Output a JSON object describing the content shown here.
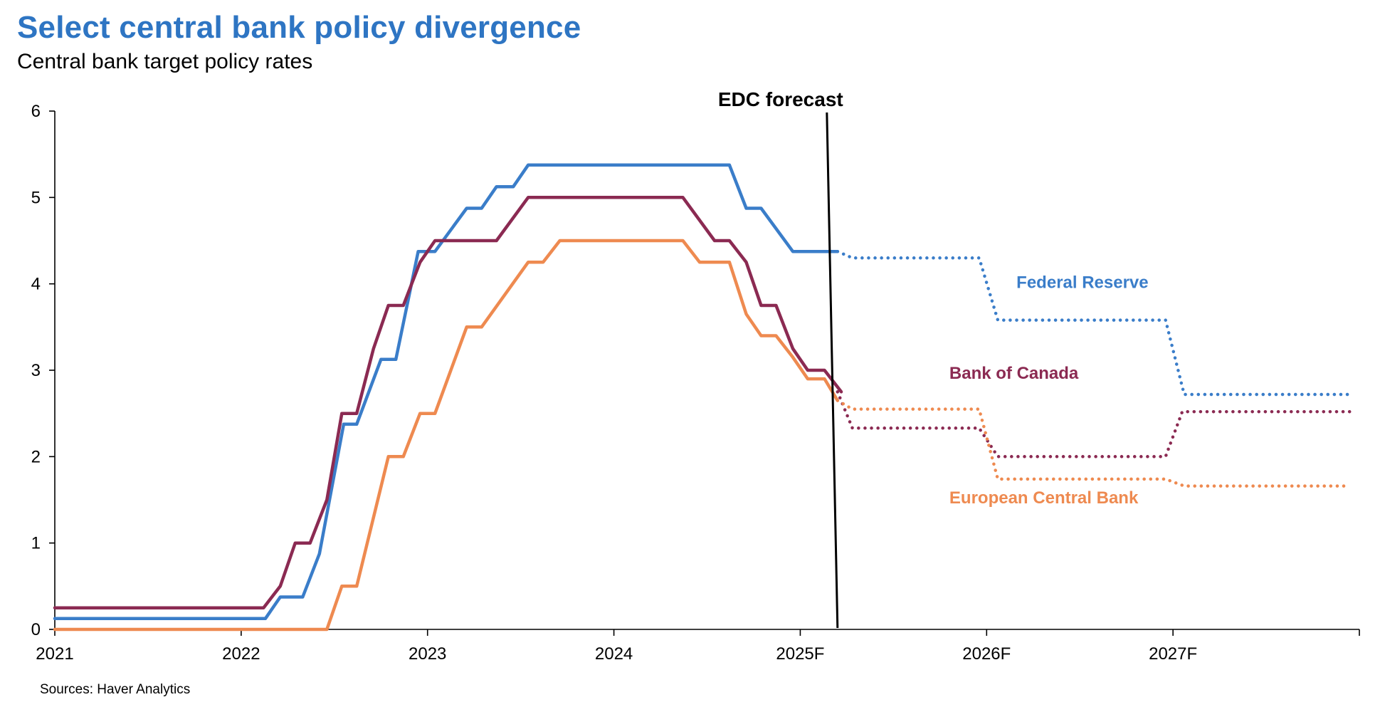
{
  "chart_data": {
    "type": "line",
    "title": "Select central bank policy divergence",
    "subtitle": "Central bank target policy rates",
    "source": "Sources: Haver Analytics",
    "forecast_label": "EDC forecast",
    "forecast_start": 2025.2,
    "xlim": [
      2021,
      2028.0
    ],
    "ylim": [
      0,
      6
    ],
    "y_ticks": [
      0,
      1,
      2,
      3,
      4,
      5,
      6
    ],
    "x_ticks": [
      {
        "value": 2021,
        "label": "2021"
      },
      {
        "value": 2022,
        "label": "2022"
      },
      {
        "value": 2023,
        "label": "2023"
      },
      {
        "value": 2024,
        "label": "2024"
      },
      {
        "value": 2025,
        "label": "2025F"
      },
      {
        "value": 2026,
        "label": "2026F"
      },
      {
        "value": 2027,
        "label": "2027F"
      }
    ],
    "colors": {
      "title": "#2E75C3",
      "fed": "#3A7DC9",
      "boc": "#8B2A52",
      "ecb": "#EE8A50"
    },
    "series": [
      {
        "name": "Federal Reserve",
        "color": "#3A7DC9",
        "label_at": [
          2026.16,
          3.95
        ],
        "actual": [
          [
            2021.0,
            0.125
          ],
          [
            2022.13,
            0.125
          ],
          [
            2022.21,
            0.375
          ],
          [
            2022.33,
            0.375
          ],
          [
            2022.42,
            0.875
          ],
          [
            2022.55,
            2.375
          ],
          [
            2022.62,
            2.375
          ],
          [
            2022.75,
            3.125
          ],
          [
            2022.83,
            3.125
          ],
          [
            2022.95,
            4.375
          ],
          [
            2023.04,
            4.375
          ],
          [
            2023.21,
            4.875
          ],
          [
            2023.29,
            4.875
          ],
          [
            2023.37,
            5.125
          ],
          [
            2023.46,
            5.125
          ],
          [
            2023.54,
            5.375
          ],
          [
            2024.62,
            5.375
          ],
          [
            2024.71,
            4.875
          ],
          [
            2024.79,
            4.875
          ],
          [
            2024.96,
            4.375
          ],
          [
            2025.2,
            4.375
          ]
        ],
        "forecast": [
          [
            2025.2,
            4.375
          ],
          [
            2025.28,
            4.3
          ],
          [
            2025.96,
            4.3
          ],
          [
            2026.06,
            3.58
          ],
          [
            2026.96,
            3.58
          ],
          [
            2027.06,
            2.72
          ],
          [
            2027.95,
            2.72
          ]
        ]
      },
      {
        "name": "Bank of Canada",
        "color": "#8B2A52",
        "label_at": [
          2025.8,
          2.9
        ],
        "actual": [
          [
            2021.0,
            0.25
          ],
          [
            2022.12,
            0.25
          ],
          [
            2022.21,
            0.5
          ],
          [
            2022.29,
            1.0
          ],
          [
            2022.37,
            1.0
          ],
          [
            2022.46,
            1.5
          ],
          [
            2022.54,
            2.5
          ],
          [
            2022.62,
            2.5
          ],
          [
            2022.71,
            3.25
          ],
          [
            2022.79,
            3.75
          ],
          [
            2022.87,
            3.75
          ],
          [
            2022.96,
            4.25
          ],
          [
            2023.04,
            4.5
          ],
          [
            2023.37,
            4.5
          ],
          [
            2023.54,
            5.0
          ],
          [
            2024.37,
            5.0
          ],
          [
            2024.54,
            4.5
          ],
          [
            2024.62,
            4.5
          ],
          [
            2024.71,
            4.25
          ],
          [
            2024.79,
            3.75
          ],
          [
            2024.87,
            3.75
          ],
          [
            2024.96,
            3.25
          ],
          [
            2025.04,
            3.0
          ],
          [
            2025.13,
            3.0
          ],
          [
            2025.22,
            2.75
          ]
        ],
        "forecast": [
          [
            2025.2,
            2.75
          ],
          [
            2025.28,
            2.33
          ],
          [
            2025.96,
            2.33
          ],
          [
            2026.06,
            2.0
          ],
          [
            2026.96,
            2.0
          ],
          [
            2027.05,
            2.52
          ],
          [
            2027.95,
            2.52
          ]
        ]
      },
      {
        "name": "European Central Bank",
        "color": "#EE8A50",
        "label_at": [
          2025.8,
          1.46
        ],
        "actual": [
          [
            2021.0,
            0.0
          ],
          [
            2022.46,
            0.0
          ],
          [
            2022.54,
            0.5
          ],
          [
            2022.62,
            0.5
          ],
          [
            2022.79,
            2.0
          ],
          [
            2022.87,
            2.0
          ],
          [
            2022.96,
            2.5
          ],
          [
            2023.04,
            2.5
          ],
          [
            2023.21,
            3.5
          ],
          [
            2023.29,
            3.5
          ],
          [
            2023.54,
            4.25
          ],
          [
            2023.62,
            4.25
          ],
          [
            2023.71,
            4.5
          ],
          [
            2024.37,
            4.5
          ],
          [
            2024.46,
            4.25
          ],
          [
            2024.62,
            4.25
          ],
          [
            2024.71,
            3.65
          ],
          [
            2024.79,
            3.4
          ],
          [
            2024.87,
            3.4
          ],
          [
            2024.96,
            3.15
          ],
          [
            2025.04,
            2.9
          ],
          [
            2025.13,
            2.9
          ],
          [
            2025.2,
            2.65
          ]
        ],
        "forecast": [
          [
            2025.2,
            2.65
          ],
          [
            2025.28,
            2.55
          ],
          [
            2025.96,
            2.55
          ],
          [
            2026.06,
            1.74
          ],
          [
            2026.96,
            1.74
          ],
          [
            2027.06,
            1.66
          ],
          [
            2027.95,
            1.66
          ]
        ]
      }
    ]
  }
}
